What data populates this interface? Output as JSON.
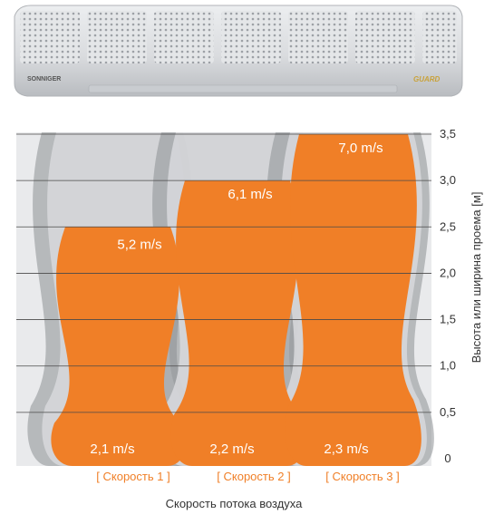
{
  "product": {
    "brand": "SONNIGER",
    "model": "GUARD"
  },
  "colors": {
    "orange": "#f07f27",
    "gray_dark": "#8d8f94",
    "gray_light": "#d6d7da",
    "panel_bg": "#e9eaec",
    "grid": "#4a4a4a",
    "text": "#333333"
  },
  "chart_data": {
    "type": "area",
    "title": "",
    "xlabel": "Скорость потока воздуха",
    "ylabel": "Высота или ширина проема [м]",
    "ylim": [
      0,
      3.5
    ],
    "y_ticks": [
      "0",
      "0,5",
      "1,0",
      "1,5",
      "2,0",
      "2,5",
      "3,0",
      "3,5"
    ],
    "categories": [
      "[ Скорость 1 ]",
      "[ Скорость 2 ]",
      "[ Скорость 3 ]"
    ],
    "series": [
      {
        "name": "[ Скорость 1 ]",
        "height": 2.5,
        "top_speed": "5,2 m/s",
        "bottom_speed": "2,1 m/s"
      },
      {
        "name": "[ Скорость 2 ]",
        "height": 3.0,
        "top_speed": "6,1 m/s",
        "bottom_speed": "2,2 m/s"
      },
      {
        "name": "[ Скорость 3 ]",
        "height": 3.5,
        "top_speed": "7,0 m/s",
        "bottom_speed": "2,3 m/s"
      }
    ],
    "grid": true
  }
}
